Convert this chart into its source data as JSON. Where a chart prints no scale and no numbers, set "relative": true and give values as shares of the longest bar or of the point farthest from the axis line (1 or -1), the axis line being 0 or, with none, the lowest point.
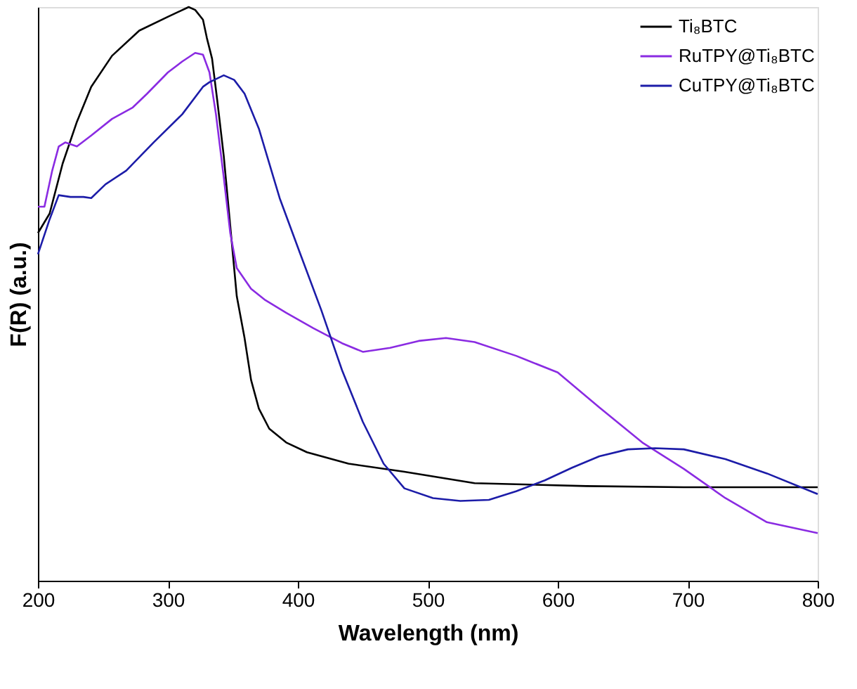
{
  "chart_data": {
    "type": "line",
    "xlabel": "Wavelength (nm)",
    "ylabel": "F(R) (a.u.)",
    "relative": true,
    "xlim": [
      200,
      800
    ],
    "xticks": [
      200,
      300,
      400,
      500,
      600,
      700,
      800
    ],
    "grid": false,
    "legend": "top right",
    "line_style": "solid",
    "series": [
      {
        "name": "Ti₈BTC",
        "color": "#000000",
        "x": [
          200,
          209,
          219,
          230,
          241,
          257,
          278,
          300,
          316,
          321,
          327,
          330,
          334,
          338,
          343,
          348,
          353,
          359,
          364,
          370,
          378,
          391,
          407,
          439,
          482,
          536,
          622,
          697,
          800
        ],
        "values": [
          0.606,
          0.64,
          0.727,
          0.8,
          0.861,
          0.915,
          0.959,
          0.983,
          1.0,
          0.995,
          0.978,
          0.946,
          0.91,
          0.837,
          0.74,
          0.618,
          0.496,
          0.423,
          0.35,
          0.3,
          0.265,
          0.241,
          0.224,
          0.204,
          0.19,
          0.17,
          0.165,
          0.163,
          0.163
        ]
      },
      {
        "name": "RuTPY@Ti₈BTC",
        "color": "#8a2be2",
        "x": [
          200,
          205,
          211,
          216,
          221,
          230,
          241,
          257,
          273,
          284,
          300,
          311,
          321,
          327,
          332,
          337,
          343,
          348,
          353,
          364,
          375,
          391,
          412,
          434,
          450,
          471,
          493,
          514,
          536,
          568,
          600,
          632,
          665,
          697,
          729,
          761,
          800
        ],
        "values": [
          0.652,
          0.652,
          0.715,
          0.757,
          0.764,
          0.757,
          0.776,
          0.805,
          0.825,
          0.849,
          0.886,
          0.905,
          0.92,
          0.917,
          0.886,
          0.813,
          0.703,
          0.606,
          0.545,
          0.509,
          0.489,
          0.467,
          0.44,
          0.414,
          0.399,
          0.406,
          0.418,
          0.423,
          0.416,
          0.392,
          0.363,
          0.302,
          0.241,
          0.195,
          0.144,
          0.102,
          0.083
        ]
      },
      {
        "name": "CuTPY@Ti₈BTC",
        "color": "#1c1ca8",
        "x": [
          200,
          209,
          216,
          225,
          235,
          241,
          252,
          268,
          289,
          311,
          327,
          332,
          343,
          351,
          359,
          370,
          386,
          402,
          418,
          434,
          450,
          466,
          482,
          504,
          525,
          547,
          568,
          590,
          611,
          632,
          654,
          675,
          697,
          729,
          761,
          800
        ],
        "values": [
          0.569,
          0.63,
          0.672,
          0.669,
          0.669,
          0.667,
          0.691,
          0.715,
          0.764,
          0.813,
          0.861,
          0.869,
          0.881,
          0.873,
          0.849,
          0.788,
          0.667,
          0.569,
          0.472,
          0.367,
          0.277,
          0.204,
          0.161,
          0.144,
          0.139,
          0.141,
          0.156,
          0.175,
          0.197,
          0.217,
          0.229,
          0.231,
          0.229,
          0.212,
          0.187,
          0.151
        ]
      }
    ]
  }
}
